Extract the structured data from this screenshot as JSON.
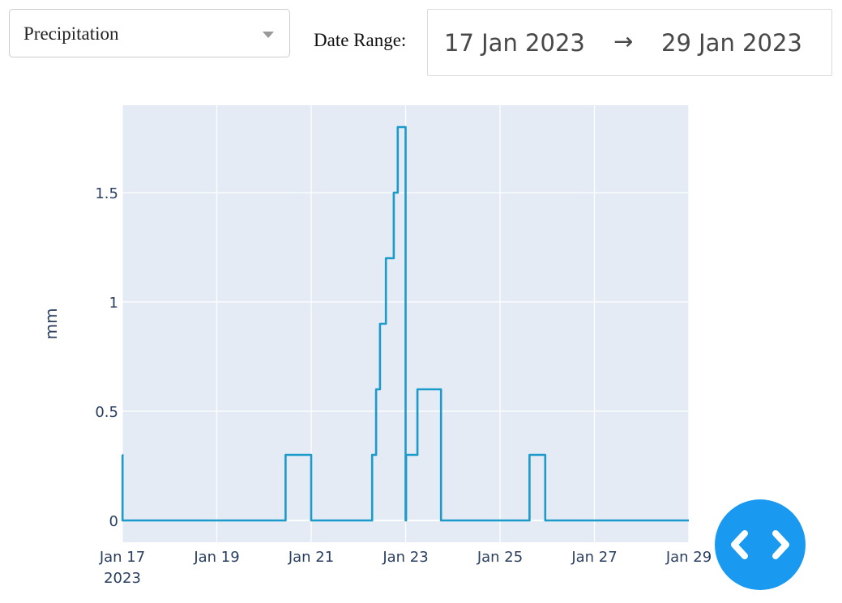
{
  "controls": {
    "variable_select": {
      "value": "Precipitation"
    },
    "date_range": {
      "label": "Date Range:",
      "start": "17 Jan 2023",
      "arrow": "→",
      "end": "29 Jan 2023"
    }
  },
  "chart_data": {
    "type": "line",
    "line_shape": "step",
    "title": "",
    "xlabel": "",
    "ylabel": "mm",
    "xlim": [
      "2023-01-17 00:00",
      "2023-01-29 00:00"
    ],
    "ylim": [
      -0.1,
      1.9
    ],
    "grid": true,
    "line_color": "#1a9bc9",
    "plot_background": "#e5ebf5",
    "x_ticks": [
      {
        "value": "2023-01-17",
        "label": "Jan 17",
        "sublabel": "2023"
      },
      {
        "value": "2023-01-19",
        "label": "Jan 19"
      },
      {
        "value": "2023-01-21",
        "label": "Jan 21"
      },
      {
        "value": "2023-01-23",
        "label": "Jan 23"
      },
      {
        "value": "2023-01-25",
        "label": "Jan 25"
      },
      {
        "value": "2023-01-27",
        "label": "Jan 27"
      },
      {
        "value": "2023-01-29",
        "label": "Jan 29"
      }
    ],
    "y_ticks": [
      {
        "value": 0,
        "label": "0"
      },
      {
        "value": 0.5,
        "label": "0.5"
      },
      {
        "value": 1,
        "label": "1"
      },
      {
        "value": 1.5,
        "label": "1.5"
      }
    ],
    "series": [
      {
        "x": [
          "2023-01-17 00:00",
          "2023-01-17 00:05",
          "2023-01-20 11:00",
          "2023-01-20 23:00",
          "2023-01-21 00:00",
          "2023-01-22 07:00",
          "2023-01-22 09:00",
          "2023-01-22 11:00",
          "2023-01-22 14:00",
          "2023-01-22 18:00",
          "2023-01-22 20:00",
          "2023-01-23 00:00",
          "2023-01-23 00:15",
          "2023-01-23 06:00",
          "2023-01-23 18:00",
          "2023-01-25 15:00",
          "2023-01-25 23:00",
          "2023-01-29 00:00"
        ],
        "y": [
          0.3,
          0,
          0.3,
          0.3,
          0,
          0.3,
          0.6,
          0.9,
          1.2,
          1.5,
          1.8,
          0,
          0.3,
          0.6,
          0,
          0.3,
          0,
          0
        ]
      }
    ]
  },
  "fab": {
    "icon": "code-icon",
    "color": "#1999f0"
  }
}
